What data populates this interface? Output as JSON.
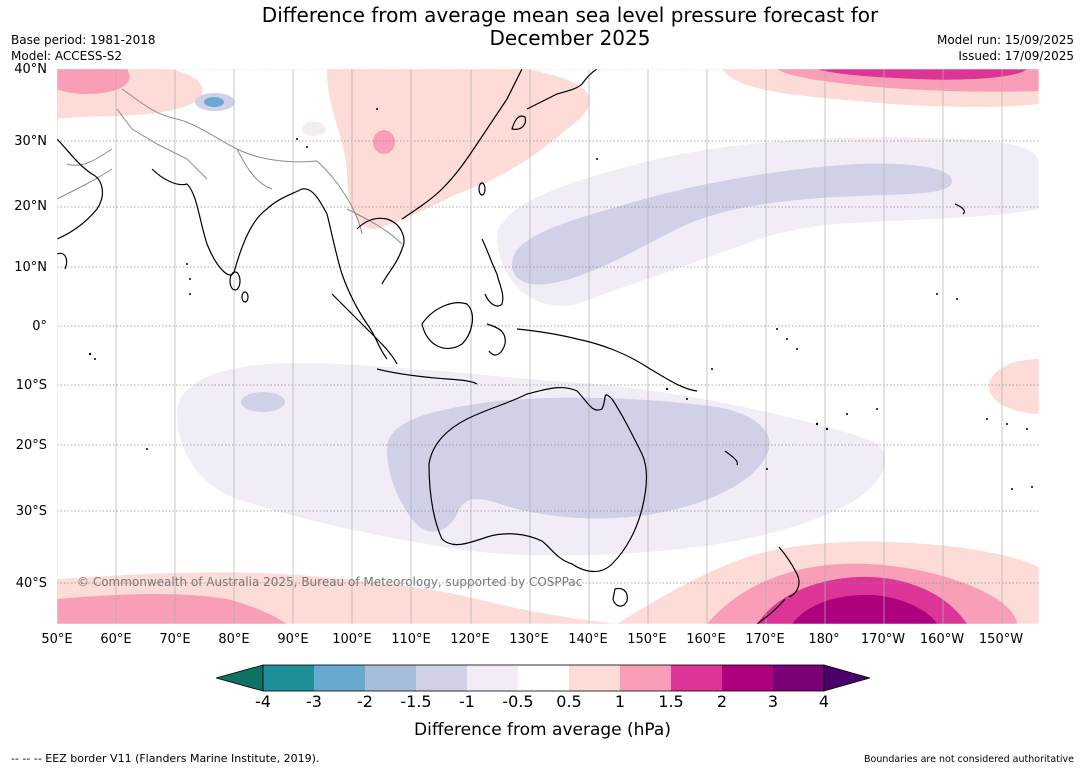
{
  "header": {
    "title_line1": "Difference from average mean sea level pressure forecast for",
    "title_line2": "December 2025",
    "base_period": "Base period: 1981-2018",
    "model": "Model: ACCESS-S2",
    "model_run": "Model run: 15/09/2025",
    "issued": "Issued: 17/09/2025"
  },
  "map": {
    "latitude_labels": [
      "40°N",
      "30°N",
      "20°N",
      "10°N",
      "0°",
      "10°S",
      "20°S",
      "30°S",
      "40°S"
    ],
    "longitude_labels": [
      "50°E",
      "60°E",
      "70°E",
      "80°E",
      "90°E",
      "100°E",
      "110°E",
      "120°E",
      "130°E",
      "140°E",
      "150°E",
      "160°E",
      "170°E",
      "180°",
      "170°W",
      "160°W",
      "150°W"
    ],
    "copyright": "© Commonwealth of Australia 2025, Bureau of Meteorology, supported by COSPPac",
    "colors": {
      "ocean_neutral": "#ffffff",
      "coast": "#000000",
      "borders": "#8c8c8c"
    }
  },
  "colorbar": {
    "tick_labels": [
      "-4",
      "-3",
      "-2",
      "-1.5",
      "-1",
      "-0.5",
      "0.5",
      "1",
      "1.5",
      "2",
      "3",
      "4"
    ],
    "colors": [
      "#0e7262",
      "#1d9099",
      "#67a9cf",
      "#a6bddb",
      "#d0d1e6",
      "#f2ecf6",
      "#ffffff",
      "#fddbd7",
      "#f89fb7",
      "#dd3497",
      "#ae017e",
      "#7a0177",
      "#49006a"
    ],
    "title": "Difference from average (hPa)"
  },
  "footer": {
    "eez": "--  --  -- EEZ border V11 (Flanders Marine Institute, 2019).",
    "boundaries": "Boundaries are not considered authoritative"
  }
}
